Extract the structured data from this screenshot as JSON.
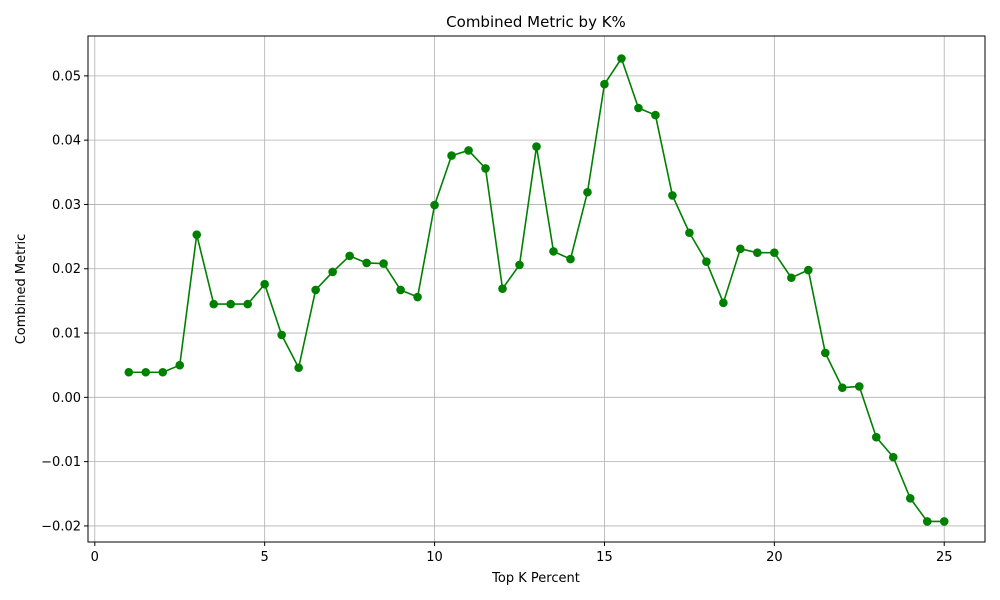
{
  "chart_data": {
    "type": "line",
    "title": "Combined Metric by K%",
    "xlabel": "Top K Percent",
    "ylabel": "Combined Metric",
    "xlim": [
      -0.2,
      26.2
    ],
    "ylim": [
      -0.0225,
      0.0562
    ],
    "xticks": [
      0,
      5,
      10,
      15,
      20,
      25
    ],
    "xtick_labels": [
      "0",
      "5",
      "10",
      "15",
      "20",
      "25"
    ],
    "yticks": [
      -0.02,
      -0.01,
      0.0,
      0.01,
      0.02,
      0.03,
      0.04,
      0.05
    ],
    "ytick_labels": [
      "−0.02",
      "−0.01",
      "0.00",
      "0.01",
      "0.02",
      "0.03",
      "0.04",
      "0.05"
    ],
    "grid": true,
    "color": "#008000",
    "marker": "circle",
    "x": [
      1,
      1.5,
      2,
      2.5,
      3,
      3.5,
      4,
      4.5,
      5,
      5.5,
      6,
      6.5,
      7,
      7.5,
      8,
      8.5,
      9,
      9.5,
      10,
      10.5,
      11,
      11.5,
      12,
      12.5,
      13,
      13.5,
      14,
      14.5,
      15,
      15.5,
      16,
      16.5,
      17,
      17.5,
      18,
      18.5,
      19,
      19.5,
      20,
      20.5,
      21,
      21.5,
      22,
      22.5,
      23,
      23.5,
      24,
      24.5,
      25
    ],
    "y": [
      0.0039,
      0.0039,
      0.0039,
      0.005,
      0.0253,
      0.0145,
      0.0145,
      0.0145,
      0.0176,
      0.0097,
      0.0046,
      0.0167,
      0.0195,
      0.022,
      0.0209,
      0.0208,
      0.0167,
      0.0156,
      0.0299,
      0.0376,
      0.0384,
      0.0356,
      0.0169,
      0.0206,
      0.039,
      0.0227,
      0.0215,
      0.0319,
      0.0487,
      0.0527,
      0.045,
      0.0439,
      0.0314,
      0.0256,
      0.0211,
      0.0147,
      0.0231,
      0.0225,
      0.0225,
      0.0186,
      0.0198,
      0.0069,
      0.0015,
      0.0017,
      -0.0062,
      -0.0093,
      -0.0157,
      -0.0193,
      -0.0193
    ]
  }
}
